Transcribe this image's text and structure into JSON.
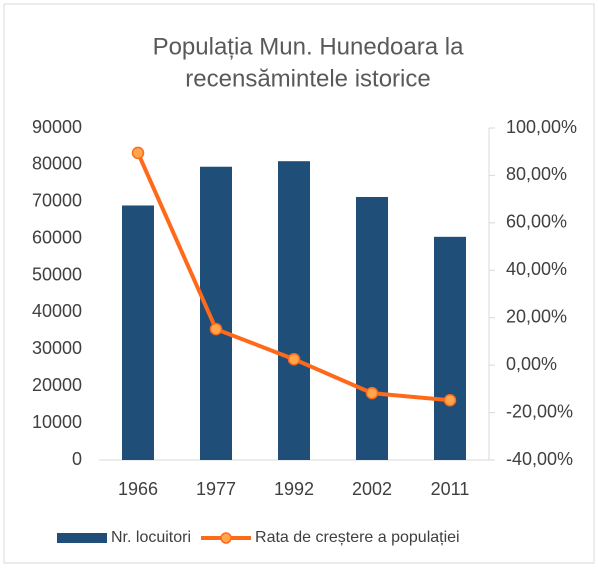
{
  "chart_data": {
    "type": "bar",
    "title": [
      "Populația Mun. Hunedoara la",
      "recensămintele istorice"
    ],
    "categories": [
      "1966",
      "1977",
      "1992",
      "2002",
      "2011"
    ],
    "series": [
      {
        "name": "Nr. locuitori",
        "type": "bar",
        "color": "#1f4e79",
        "values": [
          69000,
          79500,
          81000,
          71300,
          60500
        ]
      },
      {
        "name": "Rata de creștere a populației",
        "type": "line",
        "axis": "y2",
        "color": "#ff6a1a",
        "values": [
          89.5,
          15.2,
          2.5,
          -11.8,
          -14.8
        ]
      }
    ],
    "ylim": [
      0,
      90000
    ],
    "yticks": [
      0,
      10000,
      20000,
      30000,
      40000,
      50000,
      60000,
      70000,
      80000,
      90000
    ],
    "y2lim": [
      -40,
      100
    ],
    "y2ticks": [
      {
        "value": -40,
        "label": "-40,00%"
      },
      {
        "value": -20,
        "label": "-20,00%"
      },
      {
        "value": 0,
        "label": "0,00%"
      },
      {
        "value": 20,
        "label": "20,00%"
      },
      {
        "value": 40,
        "label": "40,00%"
      },
      {
        "value": 60,
        "label": "60,00%"
      },
      {
        "value": 80,
        "label": "80,00%"
      },
      {
        "value": 100,
        "label": "100,00%"
      }
    ],
    "legend": "bottom"
  }
}
